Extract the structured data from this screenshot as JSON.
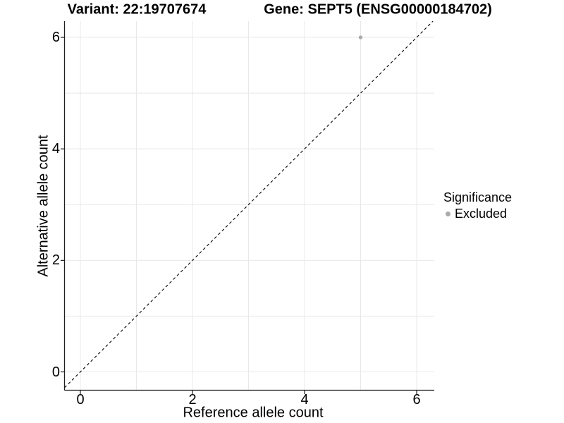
{
  "chart_data": {
    "type": "scatter",
    "title_left": "Variant: 22:19707674",
    "title_right": "Gene: SEPT5 (ENSG00000184702)",
    "xlabel": "Reference allele count",
    "ylabel": "Alternative allele count",
    "xlim": [
      -0.3,
      6.3
    ],
    "ylim": [
      -0.33,
      6.29
    ],
    "xticks": [
      0,
      2,
      4,
      6
    ],
    "yticks": [
      0,
      2,
      4,
      6
    ],
    "grid": "major gridlines every 1 unit",
    "points": [
      {
        "x": 5,
        "y": 6,
        "series": "Excluded"
      }
    ],
    "reference_line": {
      "type": "identity",
      "equation": "y = x",
      "slope": 1,
      "intercept": 0,
      "style": "dashed",
      "color": "#000000"
    },
    "legend": {
      "title": "Significance",
      "position": "right",
      "items": [
        {
          "label": "Excluded",
          "color": "#aaaaaa",
          "marker": "point"
        }
      ]
    },
    "colors": {
      "point": "#aaaaaa",
      "grid": "#e8e8e8",
      "axis": "#1f1f1f",
      "text": "#000000",
      "background": "#ffffff"
    }
  }
}
